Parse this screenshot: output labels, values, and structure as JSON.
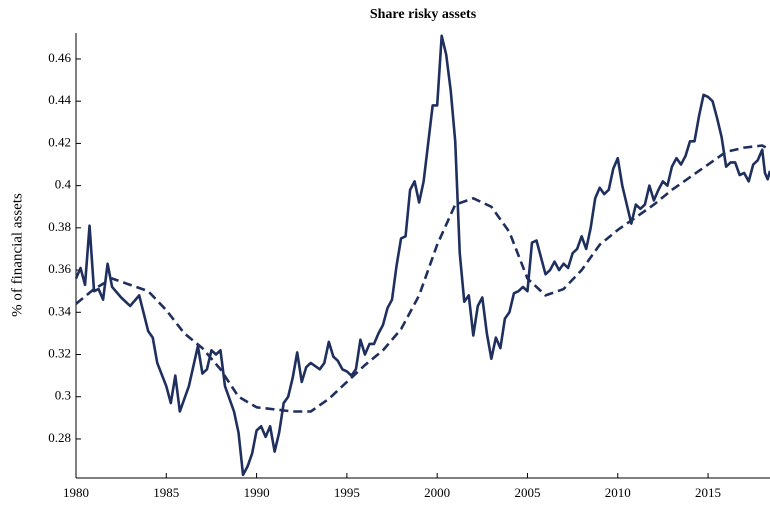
{
  "chart_data": {
    "type": "line",
    "title": "Share risky assets",
    "y_label": "% of financial assets",
    "xlim": [
      1980,
      2018.43
    ],
    "xticks": [
      1980,
      1985,
      1990,
      1995,
      2000,
      2005,
      2010,
      2015
    ],
    "ylim": [
      0.2615,
      0.4723
    ],
    "yticks": [
      0.28,
      0.3,
      0.32,
      0.34,
      0.36,
      0.38,
      0.4,
      0.42,
      0.44,
      0.46
    ],
    "series": [
      {
        "color": "#1f2f5e",
        "linestyle": "solid",
        "x": [
          1980,
          1980.25,
          1980.5,
          1980.75,
          1981,
          1981.25,
          1981.5,
          1981.75,
          1982,
          1982.5,
          1983,
          1983.5,
          1984,
          1984.25,
          1984.5,
          1985,
          1985.25,
          1985.5,
          1985.75,
          1986.25,
          1986.75,
          1987,
          1987.25,
          1987.5,
          1987.75,
          1988,
          1988.25,
          1988.75,
          1989,
          1989.25,
          1989.5,
          1989.75,
          1990,
          1990.25,
          1990.5,
          1990.75,
          1991,
          1991.25,
          1991.5,
          1991.75,
          1992,
          1992.25,
          1992.5,
          1992.75,
          1993,
          1993.5,
          1993.75,
          1994,
          1994.25,
          1994.5,
          1994.75,
          1995,
          1995.25,
          1995.5,
          1995.75,
          1996,
          1996.25,
          1996.5,
          1996.75,
          1997,
          1997.25,
          1997.5,
          1997.75,
          1998,
          1998.25,
          1998.5,
          1998.75,
          1999,
          1999.25,
          1999.5,
          1999.75,
          2000,
          2000.25,
          2000.5,
          2000.75,
          2001,
          2001.25,
          2001.5,
          2001.75,
          2002,
          2002.25,
          2002.5,
          2002.75,
          2003,
          2003.25,
          2003.5,
          2003.75,
          2004,
          2004.25,
          2004.5,
          2004.75,
          2005,
          2005.25,
          2005.5,
          2005.75,
          2006,
          2006.25,
          2006.5,
          2006.75,
          2007,
          2007.25,
          2007.5,
          2007.75,
          2008,
          2008.25,
          2008.5,
          2008.75,
          2009,
          2009.25,
          2009.5,
          2009.75,
          2010,
          2010.25,
          2010.5,
          2010.75,
          2011,
          2011.25,
          2011.5,
          2011.75,
          2012,
          2012.25,
          2012.5,
          2012.75,
          2013,
          2013.25,
          2013.5,
          2013.75,
          2014,
          2014.25,
          2014.5,
          2014.75,
          2015,
          2015.25,
          2015.5,
          2015.75,
          2016,
          2016.25,
          2016.5,
          2016.75,
          2017,
          2017.25,
          2017.5,
          2017.75,
          2018,
          2018.15,
          2018.3,
          2018.43
        ],
        "values": [
          0.356,
          0.361,
          0.353,
          0.381,
          0.35,
          0.351,
          0.346,
          0.363,
          0.352,
          0.347,
          0.343,
          0.348,
          0.331,
          0.328,
          0.316,
          0.305,
          0.297,
          0.31,
          0.293,
          0.305,
          0.324,
          0.311,
          0.313,
          0.322,
          0.32,
          0.322,
          0.305,
          0.293,
          0.283,
          0.263,
          0.267,
          0.273,
          0.284,
          0.286,
          0.281,
          0.286,
          0.274,
          0.283,
          0.297,
          0.3,
          0.309,
          0.321,
          0.307,
          0.314,
          0.316,
          0.313,
          0.316,
          0.326,
          0.319,
          0.317,
          0.313,
          0.312,
          0.31,
          0.313,
          0.327,
          0.32,
          0.325,
          0.325,
          0.33,
          0.334,
          0.342,
          0.346,
          0.362,
          0.375,
          0.376,
          0.398,
          0.402,
          0.392,
          0.402,
          0.42,
          0.438,
          0.438,
          0.471,
          0.462,
          0.445,
          0.421,
          0.368,
          0.345,
          0.348,
          0.329,
          0.343,
          0.347,
          0.33,
          0.318,
          0.328,
          0.323,
          0.337,
          0.34,
          0.349,
          0.35,
          0.352,
          0.35,
          0.373,
          0.374,
          0.366,
          0.358,
          0.36,
          0.364,
          0.36,
          0.363,
          0.361,
          0.368,
          0.37,
          0.376,
          0.37,
          0.38,
          0.394,
          0.399,
          0.396,
          0.398,
          0.408,
          0.413,
          0.4,
          0.391,
          0.382,
          0.391,
          0.389,
          0.391,
          0.4,
          0.393,
          0.398,
          0.402,
          0.4,
          0.409,
          0.413,
          0.41,
          0.414,
          0.421,
          0.421,
          0.433,
          0.443,
          0.442,
          0.44,
          0.432,
          0.423,
          0.409,
          0.411,
          0.411,
          0.405,
          0.406,
          0.402,
          0.41,
          0.412,
          0.417,
          0.406,
          0.403,
          0.407
        ]
      },
      {
        "color": "#1f2f5e",
        "linestyle": "dashed",
        "x": [
          1980,
          1981,
          1982,
          1983,
          1984,
          1985,
          1986,
          1987,
          1988,
          1989,
          1990,
          1991,
          1992,
          1993,
          1994,
          1995,
          1996,
          1997,
          1998,
          1999,
          2000,
          2001,
          2002,
          2003,
          2004,
          2005,
          2006,
          2007,
          2008,
          2009,
          2010,
          2011,
          2012,
          2013,
          2014,
          2015,
          2016,
          2017,
          2018,
          2018.43
        ],
        "values": [
          0.344,
          0.351,
          0.356,
          0.353,
          0.35,
          0.341,
          0.33,
          0.323,
          0.313,
          0.3,
          0.295,
          0.294,
          0.293,
          0.293,
          0.299,
          0.307,
          0.315,
          0.322,
          0.332,
          0.348,
          0.372,
          0.391,
          0.394,
          0.39,
          0.378,
          0.356,
          0.348,
          0.351,
          0.36,
          0.372,
          0.379,
          0.385,
          0.391,
          0.398,
          0.404,
          0.41,
          0.416,
          0.418,
          0.419,
          0.417
        ]
      }
    ]
  }
}
